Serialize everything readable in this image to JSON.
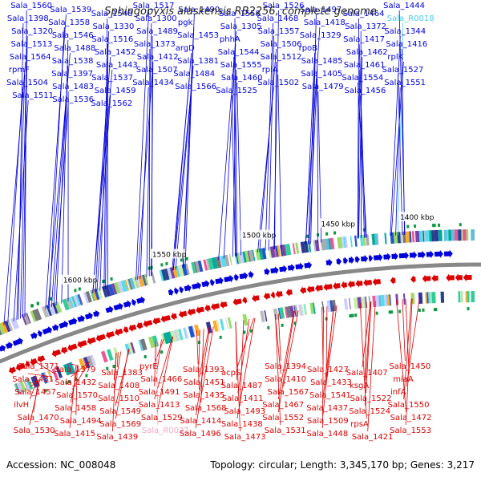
{
  "title": "Sphingopyxis alaskensis RB2256, complete genome",
  "footer": {
    "accession": "Accession: NC_008048",
    "topology": "Topology: circular; Length: 3,345,170 bp; Genes: 3,217"
  },
  "colors": {
    "forward": "#0000dd",
    "reverse": "#dd0000",
    "rna_forward": "#44ccee",
    "rna_reverse": "#f4a6c6",
    "backbone": "#888888",
    "tick": "#ffffff"
  },
  "position_markers": [
    "1400 kbp",
    "1450 kbp",
    "1500 kbp",
    "1550 kbp",
    "1600 kbp"
  ],
  "forward_labels": [
    "Sala_1560",
    "Sala_1539",
    "Sala_1548",
    "Sala_1517",
    "Sala_1490",
    "Sala_1558",
    "Sala_1526",
    "Sala_1497",
    "Sala_1464",
    "Sala_1444",
    "Sala_1398",
    "Sala_1358",
    "Sala_1330",
    "Sala_1300",
    "pgk",
    "Sala_1305",
    "Sala_1468",
    "Sala_1418",
    "Sala_1372",
    "Sala_R0018",
    "Sala_1320",
    "Sala_1546",
    "Sala_1516",
    "Sala_1489",
    "Sala_1453",
    "phhA",
    "Sala_1357",
    "Sala_1329",
    "Sala_1417",
    "Sala_1344",
    "Sala_1513",
    "Sala_1488",
    "Sala_1452",
    "Sala_1373",
    "argD",
    "Sala_1544",
    "Sala_1506",
    "rpoB",
    "Sala_1462",
    "Sala_1416",
    "Sala_1564",
    "Sala_1538",
    "Sala_1443",
    "Sala_1412",
    "Sala_1381",
    "Sala_1555",
    "Sala_1512",
    "Sala_1485",
    "Sala_1461",
    "rplK",
    "rpmF",
    "Sala_1397",
    "Sala_1537",
    "Sala_1507",
    "Sala_1484",
    "Sala_1460",
    "rplA",
    "Sala_1405",
    "Sala_1554",
    "Sala_1527",
    "Sala_1504",
    "Sala_1483",
    "Sala_1459",
    "Sala_1434",
    "Sala_1566",
    "Sala_1525",
    "Sala_1502",
    "Sala_1479",
    "Sala_1456",
    "Sala_1551",
    "Sala_1511",
    "Sala_1536",
    "Sala_1562"
  ],
  "reverse_labels": [
    "Sala_1371",
    "Sala_1379",
    "Sala_1383",
    "pyrE",
    "Sala_1393",
    "acpS",
    "Sala_1394",
    "Sala_1427",
    "Sala_1407",
    "Sala_1450",
    "Sala_1431",
    "Sala_1432",
    "Sala_1408",
    "Sala_1466",
    "Sala_1451",
    "Sala_1487",
    "Sala_1410",
    "Sala_1433",
    "ksgA",
    "miaA",
    "Sala_1457",
    "Sala_1570",
    "Sala_1510",
    "Sala_1491",
    "Sala_1435",
    "Sala_1411",
    "Sala_1567",
    "Sala_1541",
    "Sala_1522",
    "infA",
    "ilvH",
    "Sala_1458",
    "Sala_1549",
    "Sala_1413",
    "Sala_1568",
    "Sala_1493",
    "Sala_1467",
    "Sala_1437",
    "Sala_1524",
    "Sala_1550",
    "Sala_1470",
    "Sala_1494",
    "Sala_1569",
    "Sala_1529",
    "Sala_1414",
    "Sala_1438",
    "Sala_1552",
    "Sala_1509",
    "rpsA",
    "Sala_1472",
    "Sala_1530",
    "Sala_1415",
    "Sala_1439",
    "Sala_R0022",
    "Sala_1496",
    "Sala_1473",
    "Sala_1531",
    "Sala_1448",
    "Sala_1421",
    "Sala_1553"
  ]
}
